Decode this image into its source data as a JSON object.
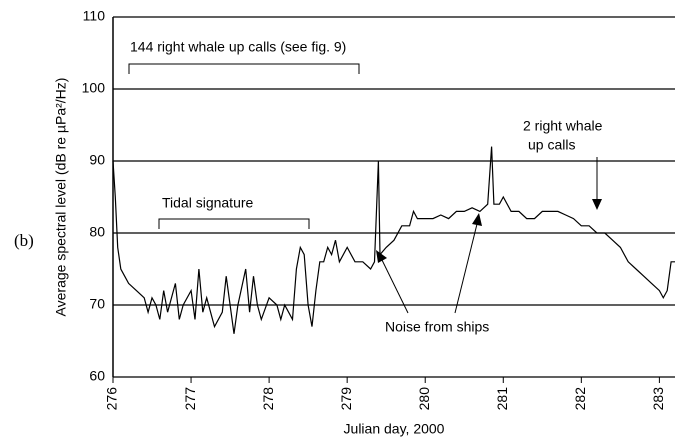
{
  "chart_data": {
    "type": "line",
    "label": "(b)",
    "xlabel": "Julian day, 2000",
    "ylabel": "Average spectral level (dB re µPa²/Hz)",
    "annotations": [
      "144 right whale up calls (see fig. 9)",
      "Tidal signature",
      "2 right whale",
      "up calls",
      "Noise from ships"
    ],
    "color": "#000000",
    "x": [
      276.0,
      276.03,
      276.06,
      276.1,
      276.15,
      276.2,
      276.3,
      276.4,
      276.45,
      276.5,
      276.55,
      276.6,
      276.65,
      276.7,
      276.8,
      276.85,
      276.9,
      277.0,
      277.05,
      277.1,
      277.15,
      277.2,
      277.3,
      277.4,
      277.45,
      277.5,
      277.55,
      277.6,
      277.7,
      277.75,
      277.8,
      277.85,
      277.9,
      278.0,
      278.1,
      278.15,
      278.2,
      278.25,
      278.3,
      278.35,
      278.4,
      278.45,
      278.5,
      278.55,
      278.6,
      278.65,
      278.7,
      278.75,
      278.8,
      278.85,
      278.9,
      279.0,
      279.1,
      279.2,
      279.3,
      279.35,
      279.4,
      279.42,
      279.5,
      279.6,
      279.7,
      279.8,
      279.85,
      279.9,
      280.0,
      280.1,
      280.2,
      280.3,
      280.4,
      280.5,
      280.6,
      280.7,
      280.8,
      280.85,
      280.88,
      280.95,
      281.0,
      281.1,
      281.2,
      281.3,
      281.4,
      281.5,
      281.6,
      281.7,
      281.8,
      281.9,
      282.0,
      282.1,
      282.2,
      282.3,
      282.4,
      282.5,
      282.6,
      282.7,
      282.8,
      282.9,
      283.0,
      283.05,
      283.1,
      283.15,
      283.2
    ],
    "values": [
      90,
      85,
      78,
      75,
      74,
      73,
      72,
      71,
      69,
      71,
      70,
      68,
      72,
      69,
      73,
      68,
      70,
      72,
      68,
      75,
      69,
      71,
      67,
      69,
      74,
      70,
      66,
      70,
      75,
      69,
      74,
      70,
      68,
      71,
      70,
      68,
      70,
      69,
      68,
      75,
      78,
      77,
      70,
      67,
      72,
      76,
      76,
      78,
      77,
      79,
      76,
      78,
      76,
      76,
      75,
      76,
      90,
      77,
      78,
      79,
      81,
      81,
      83,
      82,
      82,
      82,
      82.5,
      82,
      83,
      83,
      83.5,
      83,
      84,
      92,
      84,
      84,
      85,
      83,
      83,
      82,
      82,
      83,
      83,
      83,
      82.5,
      82,
      81,
      81,
      80,
      80,
      79,
      78,
      76,
      75,
      74,
      73,
      72,
      71,
      72,
      76,
      76
    ],
    "xlim": [
      276,
      283.2
    ],
    "ylim": [
      60,
      110
    ],
    "xticks": [
      276,
      277,
      278,
      279,
      280,
      281,
      282,
      283
    ],
    "yticks": [
      60,
      70,
      80,
      90,
      100,
      110
    ],
    "grid": true
  }
}
